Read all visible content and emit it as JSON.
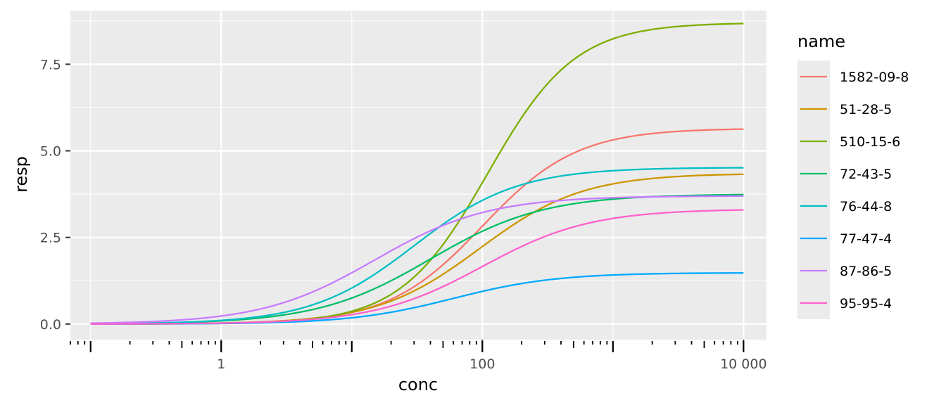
{
  "chart_data": {
    "type": "line",
    "xlabel": "conc",
    "ylabel": "resp",
    "x_scale": "log10",
    "xlim": [
      0.07,
      15000
    ],
    "ylim": [
      -0.45,
      9.05
    ],
    "grid": true,
    "legend": {
      "title": "name",
      "placement": "right"
    },
    "x_ticks": [
      {
        "value": 1,
        "label": "1"
      },
      {
        "value": 100,
        "label": "100"
      },
      {
        "value": 10000,
        "label": "10 000"
      }
    ],
    "x_minor_gridlines": [
      0.1,
      10,
      1000
    ],
    "y_ticks": [
      {
        "value": 0,
        "label": "0.0"
      },
      {
        "value": 2.5,
        "label": "2.5"
      },
      {
        "value": 5,
        "label": "5.0"
      },
      {
        "value": 7.5,
        "label": "7.5"
      }
    ],
    "curve_x_range": [
      0.1,
      10000
    ],
    "series": [
      {
        "name": "1582-09-8",
        "color": "#F8766D",
        "top": 5.65,
        "ac50": 100,
        "hill": 1.2
      },
      {
        "name": "51-28-5",
        "color": "#CD9600",
        "top": 4.35,
        "ac50": 95,
        "hill": 1.1
      },
      {
        "name": "510-15-6",
        "color": "#7CAE00",
        "top": 8.7,
        "ac50": 110,
        "hill": 1.3
      },
      {
        "name": "72-43-5",
        "color": "#00BE67",
        "top": 3.75,
        "ac50": 40,
        "hill": 1.0
      },
      {
        "name": "76-44-8",
        "color": "#00BFC4",
        "top": 4.52,
        "ac50": 30,
        "hill": 1.1
      },
      {
        "name": "77-47-4",
        "color": "#00A9FF",
        "top": 1.48,
        "ac50": 60,
        "hill": 1.1
      },
      {
        "name": "87-86-5",
        "color": "#C77CFF",
        "top": 3.7,
        "ac50": 15,
        "hill": 1.0
      },
      {
        "name": "95-95-4",
        "color": "#FF61CC",
        "top": 3.32,
        "ac50": 100,
        "hill": 1.05
      }
    ]
  }
}
